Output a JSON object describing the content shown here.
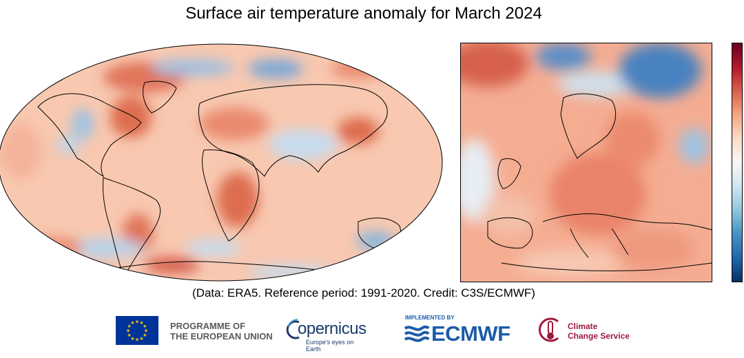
{
  "title": "Surface air temperature anomaly for March 2024",
  "credit": "(Data: ERA5.  Reference period: 1991-2020.  Credit: C3S/ECMWF)",
  "colorbar": {
    "colors": [
      "#67001f",
      "#b2182b",
      "#d6604d",
      "#f4a582",
      "#fddbc7",
      "#f7f7f7",
      "#d1e5f0",
      "#92c5de",
      "#4393c3",
      "#2166ac",
      "#053061"
    ]
  },
  "palette": {
    "warm_strong": "#d6604d",
    "warm": "#f4a582",
    "warm_light": "#fbd0b9",
    "neutral": "#f7f7f7",
    "cool_light": "#d1e5f0",
    "cool": "#92c5de",
    "cool_strong": "#4393c3",
    "coast": "#000000"
  },
  "logos": {
    "eu": {
      "line1": "PROGRAMME OF",
      "line2": "THE EUROPEAN UNION",
      "flag_color": "#003399",
      "star_color": "#ffcc00"
    },
    "copernicus": {
      "word": "opernicus",
      "tagline": "Europe's eyes on Earth"
    },
    "ecmwf": {
      "small": "IMPLEMENTED BY",
      "word": "ECMWF",
      "color": "#1d5ca8"
    },
    "c3s": {
      "line1": "Climate",
      "line2": "Change Service",
      "color": "#a0193c"
    }
  }
}
